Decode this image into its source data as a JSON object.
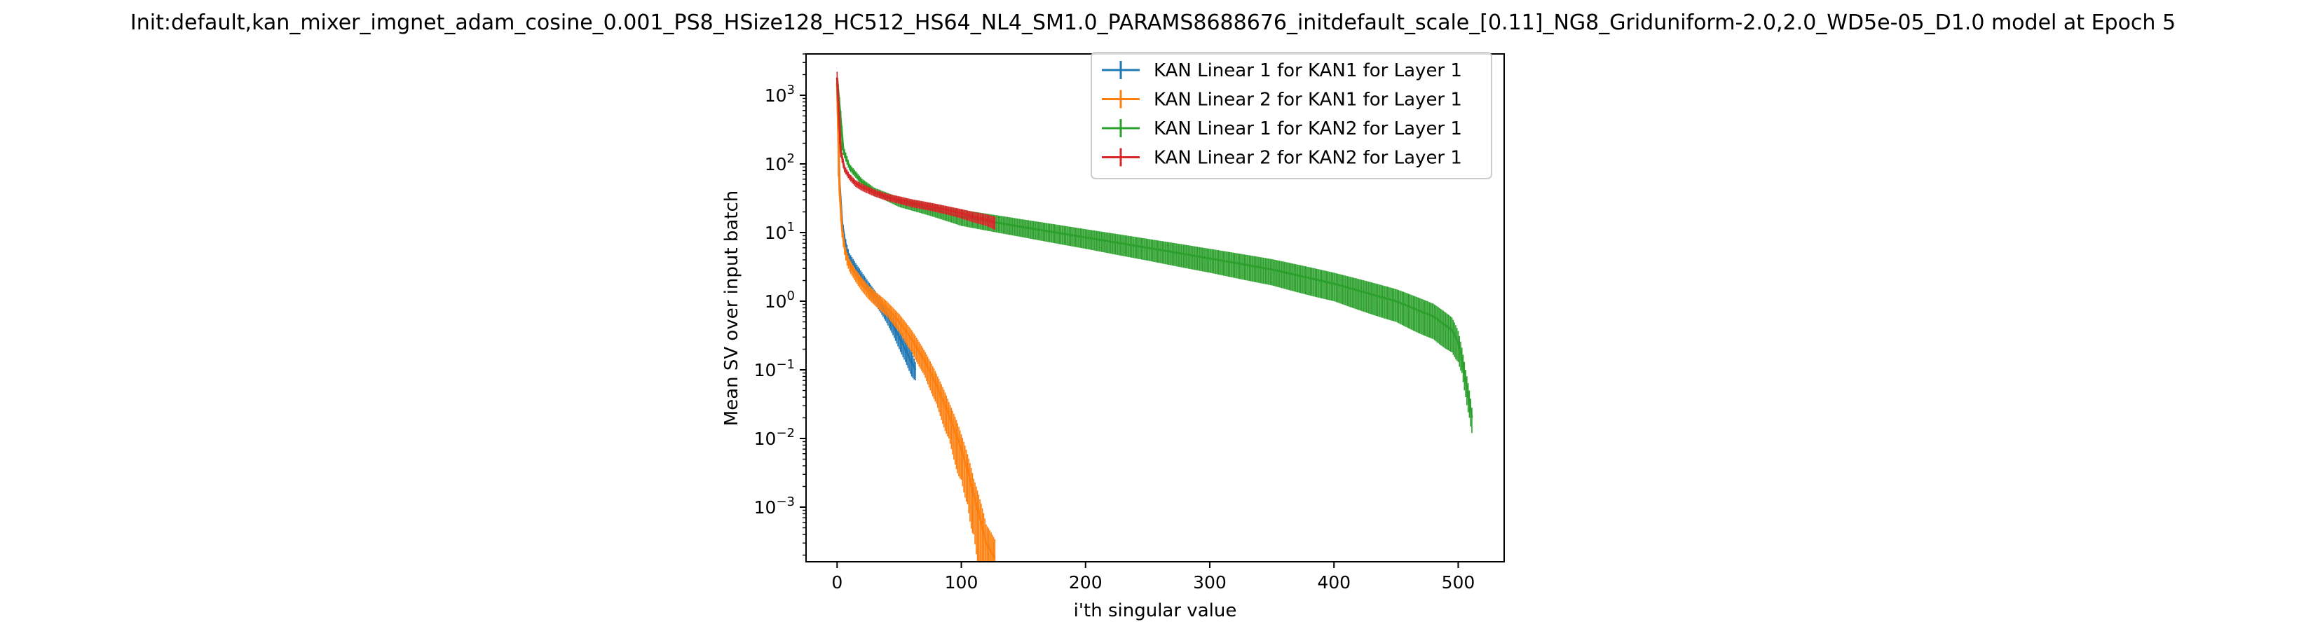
{
  "chart_data": {
    "type": "line",
    "title": "Init:default,kan_mixer_imgnet_adam_cosine_0.001_PS8_HSize128_HC512_HS64_NL4_SM1.0_PARAMS8688676_initdefault_scale_[0.11]_NG8_Griduniform-2.0,2.0_WD5e-05_D1.0 model at Epoch 5",
    "xlabel": "i'th singular value",
    "ylabel": "Mean SV over input batch",
    "xlim": [
      -25,
      537
    ],
    "ylim": [
      0.00016,
      4000
    ],
    "yscale": "log",
    "grid": false,
    "legend_position": "top-right",
    "x_ticks": [
      0,
      100,
      200,
      300,
      400,
      500
    ],
    "x_tick_labels": [
      "0",
      "100",
      "200",
      "300",
      "400",
      "500"
    ],
    "y_ticks": [
      0.001,
      0.01,
      0.1,
      1,
      10,
      100,
      1000
    ],
    "y_tick_labels": [
      {
        "base": "10",
        "exp": "−3"
      },
      {
        "base": "10",
        "exp": "−2"
      },
      {
        "base": "10",
        "exp": "−1"
      },
      {
        "base": "10",
        "exp": "0"
      },
      {
        "base": "10",
        "exp": "1"
      },
      {
        "base": "10",
        "exp": "2"
      },
      {
        "base": "10",
        "exp": "3"
      }
    ],
    "series": [
      {
        "name": "KAN Linear 1 for KAN1 for Layer 1",
        "color": "#1f77b4",
        "x": [
          0,
          2,
          4,
          6,
          8,
          10,
          15,
          20,
          25,
          30,
          35,
          40,
          45,
          50,
          55,
          60,
          63
        ],
        "y": [
          1500,
          50,
          14,
          8,
          5.5,
          4.2,
          3.0,
          2.2,
          1.6,
          1.2,
          0.9,
          0.65,
          0.45,
          0.3,
          0.2,
          0.13,
          0.1
        ],
        "err": [
          400,
          10,
          3,
          1.6,
          1.1,
          0.8,
          0.6,
          0.45,
          0.35,
          0.27,
          0.22,
          0.17,
          0.13,
          0.1,
          0.07,
          0.05,
          0.03
        ]
      },
      {
        "name": "KAN Linear 2 for KAN1 for Layer 1",
        "color": "#ff7f0e",
        "x": [
          0,
          2,
          4,
          6,
          8,
          10,
          15,
          20,
          25,
          30,
          40,
          50,
          60,
          70,
          80,
          90,
          100,
          105,
          110,
          115,
          120,
          127
        ],
        "y": [
          1500,
          40,
          11,
          6,
          4.2,
          3.4,
          2.4,
          1.8,
          1.4,
          1.15,
          0.8,
          0.5,
          0.28,
          0.14,
          0.06,
          0.022,
          0.007,
          0.0035,
          0.0015,
          0.0007,
          0.0003,
          0.00018
        ],
        "err": [
          350,
          10,
          2.5,
          1.3,
          0.9,
          0.7,
          0.5,
          0.4,
          0.32,
          0.27,
          0.2,
          0.15,
          0.1,
          0.055,
          0.028,
          0.012,
          0.0045,
          0.0024,
          0.0011,
          0.0006,
          0.00026,
          0.00016
        ]
      },
      {
        "name": "KAN Linear 1 for KAN2 for Layer 1",
        "color": "#2ca02c",
        "x": [
          0,
          5,
          10,
          20,
          30,
          50,
          75,
          100,
          150,
          200,
          250,
          300,
          350,
          400,
          450,
          480,
          495,
          500,
          503,
          506,
          509,
          511
        ],
        "y": [
          1800,
          160,
          90,
          55,
          40,
          28,
          22,
          17,
          12,
          8.5,
          6,
          4.2,
          2.9,
          1.8,
          1.0,
          0.6,
          0.38,
          0.25,
          0.15,
          0.07,
          0.035,
          0.02
        ],
        "err": [
          400,
          25,
          10,
          6,
          5,
          4.5,
          4.5,
          4.5,
          3.5,
          2.7,
          2.1,
          1.6,
          1.2,
          0.8,
          0.5,
          0.32,
          0.2,
          0.12,
          0.06,
          0.03,
          0.015,
          0.008
        ]
      },
      {
        "name": "KAN Linear 2 for KAN2 for Layer 1",
        "color": "#d62728",
        "x": [
          0,
          3,
          6,
          10,
          15,
          20,
          30,
          40,
          50,
          60,
          70,
          80,
          90,
          100,
          110,
          120,
          127
        ],
        "y": [
          1800,
          150,
          85,
          65,
          52,
          46,
          38,
          33,
          30,
          27,
          25,
          23,
          21,
          19,
          17,
          15.5,
          14
        ],
        "err": [
          400,
          25,
          10,
          7,
          6,
          5.5,
          4.5,
          4,
          3.8,
          3.6,
          3.4,
          3.2,
          3,
          3,
          3,
          3,
          3
        ]
      }
    ]
  }
}
